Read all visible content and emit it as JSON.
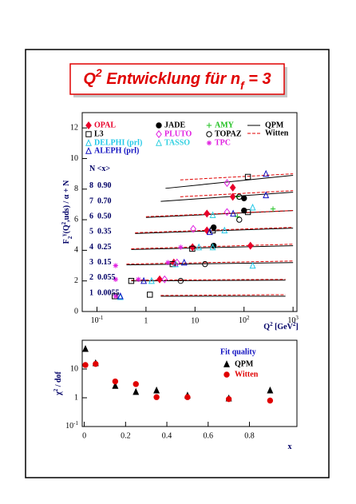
{
  "header": {
    "title": [
      {
        "text": "Q"
      },
      {
        "text": "2",
        "shift": "super"
      },
      {
        "text": " Entwicklung für n"
      },
      {
        "text": "f",
        "shift": "sub"
      },
      {
        "text": " = 3"
      }
    ]
  },
  "chart_data": [
    {
      "type": "scatter",
      "xlog": true,
      "xlim": [
        0.05,
        1200
      ],
      "ylim": [
        0,
        13
      ],
      "xticks": [
        {
          "value": 0.1,
          "label": "10",
          "exp": "-1"
        },
        1,
        10,
        {
          "value": 100,
          "label": "10",
          "exp": "2"
        },
        {
          "value": 1000,
          "label": "10",
          "exp": "3"
        }
      ],
      "yticks": [
        0,
        2,
        4,
        6,
        8,
        10,
        12
      ],
      "xlabel": [
        {
          "text": "Q"
        },
        {
          "text": "2",
          "shift": "super"
        },
        {
          "text": " [GeV"
        },
        {
          "text": "2",
          "shift": "super"
        },
        {
          "text": "]"
        }
      ],
      "ylabel": [
        {
          "text": "F"
        },
        {
          "text": "2",
          "shift": "sub"
        },
        {
          "text": "γ",
          "shift": "super"
        },
        {
          "text": "(Q"
        },
        {
          "text": "2",
          "shift": "super"
        },
        {
          "text": ",uds) / α + N"
        }
      ],
      "bins_header": "N  <x>",
      "bins": [
        {
          "n": 8,
          "x": "0.90"
        },
        {
          "n": 7,
          "x": "0.70"
        },
        {
          "n": 6,
          "x": "0.50"
        },
        {
          "n": 5,
          "x": "0.35"
        },
        {
          "n": 4,
          "x": "0.25"
        },
        {
          "n": 3,
          "x": "0.15"
        },
        {
          "n": 2,
          "x": "0.055"
        },
        {
          "n": 1,
          "x": "0.0055"
        }
      ],
      "series": [
        {
          "name": "OPAL",
          "color": "#e8002a",
          "marker": "diamond",
          "x": [
            1.9,
            3.7,
            8.9,
            17.5,
            17.5,
            59,
            59,
            135
          ],
          "values": [
            2.1,
            3.2,
            4.2,
            5.3,
            6.4,
            7.5,
            8.1,
            4.3
          ]
        },
        {
          "name": "L3",
          "color": "#000000",
          "marker": "square",
          "x": [
            0.23,
            0.5,
            1.2,
            3.5,
            8.8,
            23,
            120,
            120
          ],
          "values": [
            1.0,
            2.0,
            1.1,
            3.1,
            4.1,
            5.3,
            8.8,
            6.5
          ]
        },
        {
          "name": "DELPHI (prl)",
          "color": "#22c8e8",
          "marker": "triangle",
          "x": [
            0.3,
            1.3,
            4,
            12,
            40,
            150,
            150
          ],
          "values": [
            0.95,
            2.0,
            3.1,
            4.2,
            5.3,
            3.0,
            6.8
          ]
        },
        {
          "name": "ALEPH (prl)",
          "color": "#1010c0",
          "marker": "triangle",
          "x": [
            0.3,
            0.9,
            6,
            20,
            60,
            280,
            280
          ],
          "values": [
            1.0,
            2.0,
            3.2,
            5.2,
            6.4,
            7.6,
            9.0
          ]
        },
        {
          "name": "JADE",
          "color": "#000000",
          "marker": "dot",
          "x": [
            24,
            24,
            100,
            100
          ],
          "values": [
            4.3,
            5.5,
            6.6,
            7.4
          ]
        },
        {
          "name": "PLUTO",
          "color": "#e020e0",
          "marker": "diamond-open",
          "x": [
            2.4,
            4.3,
            9.2,
            45,
            45
          ],
          "values": [
            2.1,
            3.2,
            5.4,
            6.5,
            8.4
          ]
        },
        {
          "name": "TASSO",
          "color": "#30d0e0",
          "marker": "triangle",
          "x": [
            23,
            23
          ],
          "values": [
            4.2,
            6.3
          ]
        },
        {
          "name": "AMY",
          "color": "#20c020",
          "marker": "cross",
          "x": [
            73,
            73,
            390
          ],
          "values": [
            6.2,
            7.5,
            6.7
          ]
        },
        {
          "name": "TOPAZ",
          "color": "#000000",
          "marker": "circle",
          "x": [
            5.1,
            16,
            80,
            80
          ],
          "values": [
            2.0,
            3.1,
            6.0,
            7.5
          ]
        },
        {
          "name": "TPC",
          "color": "#e020e0",
          "marker": "star",
          "x": [
            0.24,
            0.24,
            0.24,
            0.7,
            2.8,
            5.1
          ],
          "values": [
            1.0,
            2.1,
            3.0,
            2.1,
            3.2,
            4.2
          ]
        }
      ],
      "curves": [
        {
          "name": "QPM",
          "color": "#000000",
          "dash": false,
          "segments": [
            {
              "x": [
                2,
                700
              ],
              "y": [
                1.0,
                1.0
              ]
            },
            {
              "x": [
                0.5,
                700
              ],
              "y": [
                2.0,
                2.05
              ]
            },
            {
              "x": [
                0.4,
                1000
              ],
              "y": [
                3.05,
                3.2
              ]
            },
            {
              "x": [
                0.5,
                1000
              ],
              "y": [
                4.05,
                4.3
              ]
            },
            {
              "x": [
                0.6,
                1000
              ],
              "y": [
                5.1,
                5.45
              ]
            },
            {
              "x": [
                1,
                1000
              ],
              "y": [
                6.15,
                6.6
              ]
            },
            {
              "x": [
                2,
                1000
              ],
              "y": [
                7.2,
                7.8
              ]
            },
            {
              "x": [
                2.5,
                1000
              ],
              "y": [
                8.05,
                8.9
              ]
            }
          ]
        },
        {
          "name": "Witten",
          "color": "#e00000",
          "dash": true,
          "segments": [
            {
              "x": [
                2,
                700
              ],
              "y": [
                1.05,
                1.1
              ]
            },
            {
              "x": [
                0.5,
                700
              ],
              "y": [
                2.05,
                2.1
              ]
            },
            {
              "x": [
                0.4,
                1000
              ],
              "y": [
                3.1,
                3.3
              ]
            },
            {
              "x": [
                0.5,
                1000
              ],
              "y": [
                4.1,
                4.4
              ]
            },
            {
              "x": [
                0.6,
                1000
              ],
              "y": [
                5.15,
                5.5
              ]
            },
            {
              "x": [
                1,
                1000
              ],
              "y": [
                6.2,
                6.6
              ]
            },
            {
              "x": [
                5,
                1000
              ],
              "y": [
                7.5,
                7.9
              ]
            },
            {
              "x": [
                5,
                1000
              ],
              "y": [
                8.6,
                9.0
              ]
            }
          ]
        }
      ]
    },
    {
      "type": "scatter",
      "ylog": true,
      "xlim": [
        -0.01,
        1.03
      ],
      "ylim": [
        0.1,
        100
      ],
      "xticks": [
        0,
        0.2,
        0.4,
        0.6,
        0.8
      ],
      "yticks": [
        {
          "value": 0.1,
          "label": "10",
          "exp": "-1"
        },
        1,
        10
      ],
      "xlabel": [
        {
          "text": "x"
        }
      ],
      "ylabel": [
        {
          "text": "χ"
        },
        {
          "text": "2",
          "shift": "super"
        },
        {
          "text": " / dof"
        }
      ],
      "legend_title": "Fit quality",
      "x": [
        0.0055,
        0.055,
        0.15,
        0.25,
        0.35,
        0.5,
        0.7,
        0.9
      ],
      "series": [
        {
          "name": "QPM",
          "color": "#000000",
          "marker": "triangle-fill",
          "values": [
            50,
            16,
            2.6,
            1.6,
            1.8,
            1.2,
            0.95,
            1.8
          ]
        },
        {
          "name": "Witten",
          "color": "#e00000",
          "marker": "dot",
          "values": [
            13.8,
            15,
            3.7,
            3.0,
            1.05,
            1.05,
            0.9,
            0.8
          ]
        }
      ]
    }
  ]
}
